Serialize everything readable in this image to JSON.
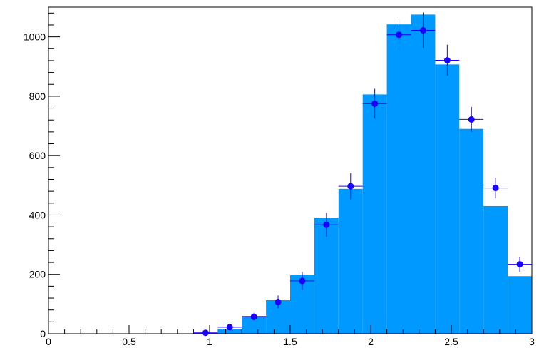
{
  "chart_data": {
    "type": "bar",
    "title": "",
    "xlabel": "",
    "ylabel": "",
    "xlim": [
      0,
      3
    ],
    "ylim": [
      0,
      1100
    ],
    "grid": false,
    "x_ticks": [
      0,
      0.5,
      1,
      1.5,
      2,
      2.5,
      3
    ],
    "y_ticks": [
      0,
      200,
      400,
      600,
      800,
      1000
    ],
    "x_tick_labels": [
      "0",
      "0.5",
      "1",
      "1.5",
      "2",
      "2.5",
      "3"
    ],
    "y_tick_labels": [
      "0",
      "200",
      "400",
      "600",
      "800",
      "1000"
    ],
    "bin_width": 0.15,
    "bin_edges": [
      0.9,
      1.05,
      1.2,
      1.35,
      1.5,
      1.65,
      1.8,
      1.95,
      2.1,
      2.25,
      2.4,
      2.55,
      2.7,
      2.85,
      3.0
    ],
    "series": [
      {
        "kind": "histogram",
        "color": "#0099ff",
        "values": [
          3,
          15,
          60,
          113,
          197,
          391,
          488,
          806,
          1042,
          1075,
          907,
          690,
          430,
          194
        ]
      },
      {
        "kind": "points",
        "color": "#1a00ff",
        "x": [
          0.975,
          1.125,
          1.275,
          1.425,
          1.575,
          1.725,
          1.875,
          2.025,
          2.175,
          2.325,
          2.475,
          2.625,
          2.775,
          2.925
        ],
        "y": [
          3,
          22,
          57,
          107,
          178,
          367,
          497,
          775,
          1007,
          1022,
          921,
          722,
          491,
          234
        ],
        "yerr": [
          2,
          6,
          12,
          22,
          30,
          40,
          44,
          50,
          55,
          60,
          52,
          42,
          35,
          25
        ]
      }
    ]
  }
}
